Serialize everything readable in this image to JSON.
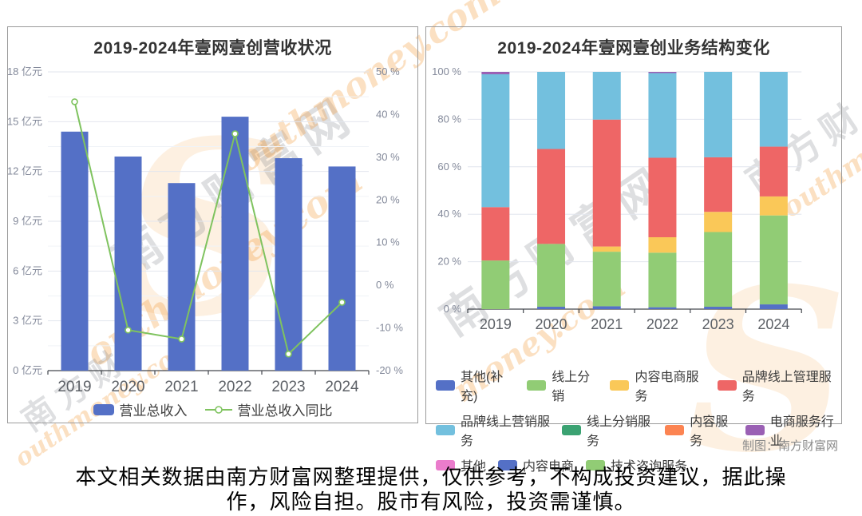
{
  "page": {
    "credit": "制图：南方财富网",
    "disclaimer": [
      "本文相关数据由南方财富网整理提供，仅供参考，不构成投资建议，据此操",
      "作，风险自担。股市有风险，投资需谨慎。"
    ]
  },
  "watermarks": {
    "brand_cn": "南方财富网",
    "brand_cn_short": "南方财",
    "brand_en": "outhmoney.com",
    "brand_en_mid": "money.com",
    "logo_swoosh": "S"
  },
  "chart_data": [
    {
      "type": "bar+line",
      "title": "2019-2024年壹网壹创营收状况",
      "categories": [
        "2019",
        "2020",
        "2021",
        "2022",
        "2023",
        "2024"
      ],
      "series": [
        {
          "name": "营业总收入",
          "type": "bar",
          "unit": "亿元",
          "color": "#5470c6",
          "values": [
            14.4,
            12.9,
            11.3,
            15.3,
            12.8,
            12.3
          ]
        },
        {
          "name": "营业总收入同比",
          "type": "line",
          "unit": "%",
          "color": "#7fc35f",
          "values": [
            43.0,
            -10.5,
            -12.6,
            35.5,
            -16.1,
            -4.0
          ]
        }
      ],
      "left_axis": {
        "min": 0,
        "max": 18,
        "unit": "亿元",
        "ticks": [
          "18 亿元",
          "15 亿元",
          "12 亿元",
          "9 亿元",
          "6 亿元",
          "3 亿元",
          "0 亿元"
        ]
      },
      "right_axis": {
        "min": -20,
        "max": 50,
        "unit": "%",
        "ticks": [
          "50 %",
          "40 %",
          "30 %",
          "20 %",
          "10 %",
          "0 %",
          "-10 %",
          "-20 %"
        ]
      },
      "grid": true,
      "legend_position": "bottom"
    },
    {
      "type": "stacked-bar-percent",
      "title": "2019-2024年壹网壹创业务结构变化",
      "categories": [
        "2019",
        "2020",
        "2021",
        "2022",
        "2023",
        "2024"
      ],
      "y_axis": {
        "min": 0,
        "max": 100,
        "unit": "%",
        "ticks": [
          "100 %",
          "80 %",
          "60 %",
          "40 %",
          "20 %",
          "0 %"
        ]
      },
      "series": [
        {
          "name": "其他(补充)",
          "color": "#5470c6",
          "values": [
            0,
            1,
            1.2,
            0.8,
            1,
            2
          ]
        },
        {
          "name": "线上分销",
          "color": "#91cc75",
          "values": [
            20.5,
            26.5,
            23,
            23,
            31.5,
            37.5
          ]
        },
        {
          "name": "内容电商服务",
          "color": "#fac858",
          "values": [
            0,
            0,
            2.2,
            6.5,
            8.5,
            8
          ]
        },
        {
          "name": "品牌线上管理服务",
          "color": "#ee6666",
          "values": [
            22.5,
            40,
            53.5,
            33.5,
            23,
            21
          ]
        },
        {
          "name": "品牌线上营销服务",
          "color": "#73c0de",
          "values": [
            56,
            32.5,
            20.1,
            35.7,
            36,
            31.5
          ]
        },
        {
          "name": "线上分销服务",
          "color": "#3ba272",
          "values": [
            0,
            0,
            0,
            0,
            0,
            0
          ]
        },
        {
          "name": "内容服务",
          "color": "#fc8452",
          "values": [
            0,
            0,
            0,
            0,
            0,
            0
          ]
        },
        {
          "name": "电商服务行业",
          "color": "#9a60b4",
          "values": [
            1,
            0,
            0,
            0.5,
            0,
            0
          ]
        },
        {
          "name": "其他",
          "color": "#ea7ccc",
          "values": [
            0,
            0,
            0,
            0,
            0,
            0
          ]
        },
        {
          "name": "内容电商",
          "color": "#5470c6",
          "values": [
            0,
            0,
            0,
            0,
            0,
            0
          ]
        },
        {
          "name": "技术咨询服务",
          "color": "#91cc75",
          "values": [
            0,
            0,
            0,
            0,
            0,
            0
          ]
        }
      ],
      "legend_rows": [
        [
          0,
          1,
          2,
          3
        ],
        [
          4,
          5,
          6,
          7
        ],
        [
          8,
          9,
          10
        ]
      ],
      "grid": true,
      "legend_position": "bottom"
    }
  ]
}
